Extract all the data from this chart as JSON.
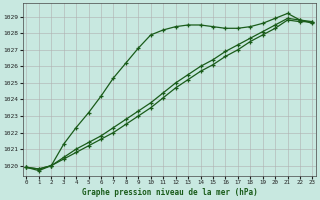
{
  "title": "Graphe pression niveau de la mer (hPa)",
  "background_color": "#c8e8e0",
  "grid_color": "#b0b0b0",
  "line_color": "#1a5c1a",
  "ylim": [
    1019.4,
    1029.8
  ],
  "xlim": [
    -0.3,
    23.3
  ],
  "yticks": [
    1020,
    1021,
    1022,
    1023,
    1024,
    1025,
    1026,
    1027,
    1028,
    1029
  ],
  "xticks": [
    0,
    1,
    2,
    3,
    4,
    5,
    6,
    7,
    8,
    9,
    10,
    11,
    12,
    13,
    14,
    15,
    16,
    17,
    18,
    19,
    20,
    21,
    22,
    23
  ],
  "series": [
    {
      "x": [
        0,
        1,
        2,
        3,
        4,
        5,
        6,
        7,
        8,
        9,
        10,
        11,
        12,
        13,
        14,
        15,
        16,
        17,
        18,
        19,
        20,
        21,
        22,
        23
      ],
      "y": [
        1019.9,
        1019.7,
        1020.0,
        1021.3,
        1022.3,
        1023.2,
        1024.2,
        1025.3,
        1026.2,
        1027.1,
        1027.9,
        1028.2,
        1028.4,
        1028.5,
        1028.5,
        1028.4,
        1028.3,
        1028.3,
        1028.4,
        1028.6,
        1028.9,
        1029.2,
        1028.8,
        1028.6
      ],
      "linestyle": "-",
      "marker": "+"
    },
    {
      "x": [
        0,
        1,
        2,
        3,
        4,
        5,
        6,
        7,
        8,
        9,
        10,
        11,
        12,
        13,
        14,
        15,
        16,
        17,
        18,
        19,
        20,
        21,
        22,
        23
      ],
      "y": [
        1019.9,
        1019.8,
        1020.0,
        1020.5,
        1021.0,
        1021.4,
        1021.8,
        1022.3,
        1022.8,
        1023.3,
        1023.8,
        1024.4,
        1025.0,
        1025.5,
        1026.0,
        1026.4,
        1026.9,
        1027.3,
        1027.7,
        1028.1,
        1028.5,
        1028.9,
        1028.8,
        1028.7
      ],
      "linestyle": "-",
      "marker": "+"
    },
    {
      "x": [
        0,
        1,
        2,
        3,
        4,
        5,
        6,
        7,
        8,
        9,
        10,
        11,
        12,
        13,
        14,
        15,
        16,
        17,
        18,
        19,
        20,
        21,
        22,
        23
      ],
      "y": [
        1019.9,
        1019.8,
        1020.0,
        1020.4,
        1020.8,
        1021.2,
        1021.6,
        1022.0,
        1022.5,
        1023.0,
        1023.5,
        1024.1,
        1024.7,
        1025.2,
        1025.7,
        1026.1,
        1026.6,
        1027.0,
        1027.5,
        1027.9,
        1028.3,
        1028.8,
        1028.7,
        1028.7
      ],
      "linestyle": "-",
      "marker": "+"
    }
  ]
}
